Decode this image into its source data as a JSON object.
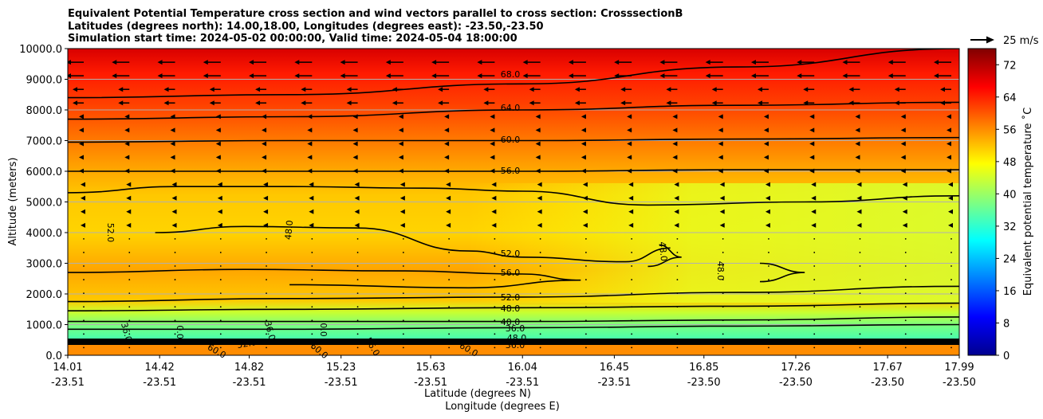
{
  "chart_data": {
    "type": "contour-cross-section",
    "title_lines": [
      "Equivalent Potential Temperature cross section and wind vectors parallel to cross section: CrosssectionB",
      "Latitudes (degrees north): 14.00,18.00, Longitudes (degrees east): -23.50,-23.50",
      "Simulation start time: 2024-05-02 00:00:00, Valid time: 2024-05-04 18:00:00"
    ],
    "ylabel": "Altitude (meters)",
    "xlabel_lat": "Latitude (degrees N)",
    "xlabel_lon": "Longitude (degrees E)",
    "ylim": [
      0,
      10000
    ],
    "y_ticks": [
      "0.0",
      "1000.0",
      "2000.0",
      "3000.0",
      "4000.0",
      "5000.0",
      "6000.0",
      "7000.0",
      "8000.0",
      "9000.0",
      "10000.0"
    ],
    "y_tick_values": [
      0,
      1000,
      2000,
      3000,
      4000,
      5000,
      6000,
      7000,
      8000,
      9000,
      10000
    ],
    "xlim": [
      14.01,
      17.99
    ],
    "x_ticks": [
      {
        "lat": "14.01",
        "lon": "-23.51"
      },
      {
        "lat": "14.42",
        "lon": "-23.51"
      },
      {
        "lat": "14.82",
        "lon": "-23.51"
      },
      {
        "lat": "15.23",
        "lon": "-23.51"
      },
      {
        "lat": "15.63",
        "lon": "-23.51"
      },
      {
        "lat": "16.04",
        "lon": "-23.51"
      },
      {
        "lat": "16.45",
        "lon": "-23.51"
      },
      {
        "lat": "16.85",
        "lon": "-23.50"
      },
      {
        "lat": "17.26",
        "lon": "-23.50"
      },
      {
        "lat": "17.67",
        "lon": "-23.50"
      },
      {
        "lat": "17.99",
        "lon": "-23.50"
      }
    ],
    "x_tick_values": [
      14.01,
      14.42,
      14.82,
      15.23,
      15.63,
      16.04,
      16.45,
      16.85,
      17.26,
      17.67,
      17.99
    ],
    "colorbar": {
      "label": "Equivalent potential temperature ˚C",
      "range": [
        0,
        76
      ],
      "ticks": [
        "0",
        "8",
        "16",
        "24",
        "32",
        "40",
        "48",
        "56",
        "64",
        "72"
      ],
      "tick_values": [
        0,
        8,
        16,
        24,
        32,
        40,
        48,
        56,
        64,
        72
      ],
      "colormap": "jet"
    },
    "quiver_key": "25 m/s",
    "contours": [
      {
        "level": 68,
        "label": "68.0",
        "points": [
          [
            14.01,
            8400
          ],
          [
            15.0,
            8500
          ],
          [
            16.04,
            8850
          ],
          [
            17.0,
            9400
          ],
          [
            17.99,
            10000
          ]
        ]
      },
      {
        "level": 64,
        "label": "64.0",
        "points": [
          [
            14.01,
            7700
          ],
          [
            15.0,
            7780
          ],
          [
            16.04,
            8000
          ],
          [
            17.0,
            8150
          ],
          [
            17.99,
            8250
          ]
        ]
      },
      {
        "level": 60,
        "label": "60.0",
        "points": [
          [
            14.01,
            6950
          ],
          [
            15.0,
            7000
          ],
          [
            16.04,
            7000
          ],
          [
            17.0,
            7050
          ],
          [
            17.99,
            7100
          ]
        ]
      },
      {
        "level": 56,
        "label": "56.0",
        "points": [
          [
            14.01,
            6000
          ],
          [
            15.0,
            6000
          ],
          [
            16.04,
            6000
          ],
          [
            17.0,
            6050
          ],
          [
            17.99,
            6050
          ]
        ]
      },
      {
        "level": 56,
        "label": "",
        "points": [
          [
            14.01,
            5300
          ],
          [
            14.5,
            5500
          ],
          [
            15.0,
            5500
          ],
          [
            15.6,
            5450
          ],
          [
            16.04,
            5350
          ],
          [
            16.6,
            4900
          ],
          [
            17.3,
            5000
          ],
          [
            17.99,
            5200
          ]
        ]
      },
      {
        "level": 52,
        "label": "52.0",
        "points": [
          [
            14.4,
            4000
          ],
          [
            14.8,
            4200
          ],
          [
            15.3,
            4150
          ],
          [
            15.8,
            3400
          ],
          [
            16.04,
            3200
          ],
          [
            16.5,
            3050
          ],
          [
            16.7,
            3500
          ]
        ]
      },
      {
        "level": 56,
        "label": "56.0",
        "points": [
          [
            14.01,
            2700
          ],
          [
            14.8,
            2800
          ],
          [
            15.5,
            2750
          ],
          [
            16.04,
            2650
          ],
          [
            16.3,
            2450
          ],
          [
            15.8,
            2200
          ],
          [
            15.0,
            2300
          ]
        ]
      },
      {
        "level": 52,
        "label": "52.0",
        "points": [
          [
            14.01,
            1750
          ],
          [
            15.0,
            1850
          ],
          [
            16.04,
            1900
          ],
          [
            17.0,
            2050
          ],
          [
            17.99,
            2250
          ]
        ]
      },
      {
        "level": 48,
        "label": "48.0",
        "points": [
          [
            14.01,
            1450
          ],
          [
            15.0,
            1500
          ],
          [
            16.04,
            1550
          ],
          [
            17.0,
            1600
          ],
          [
            17.99,
            1700
          ]
        ]
      },
      {
        "level": 40,
        "label": "40.0",
        "points": [
          [
            14.01,
            1100
          ],
          [
            15.0,
            1100
          ],
          [
            16.04,
            1100
          ],
          [
            17.0,
            1150
          ],
          [
            17.99,
            1250
          ]
        ]
      },
      {
        "level": 36,
        "label": "36.0",
        "points": [
          [
            14.01,
            850
          ],
          [
            15.0,
            850
          ],
          [
            16.04,
            900
          ],
          [
            17.0,
            950
          ],
          [
            17.99,
            1000
          ]
        ]
      },
      {
        "level": 48,
        "label": "48.0",
        "points": [
          [
            17.1,
            3000
          ],
          [
            17.3,
            2700
          ],
          [
            17.1,
            2400
          ]
        ]
      },
      {
        "level": 48,
        "label": "48.0",
        "points": [
          [
            16.65,
            3600
          ],
          [
            16.75,
            3200
          ],
          [
            16.6,
            2900
          ]
        ]
      }
    ],
    "inline_labels": [
      "48.0",
      "52.0",
      "60.0",
      "60.0",
      "60.0",
      "36.0",
      "36.0",
      "0.0",
      "60.0",
      "56.0",
      "48.0",
      "52.0",
      "36.0"
    ]
  }
}
